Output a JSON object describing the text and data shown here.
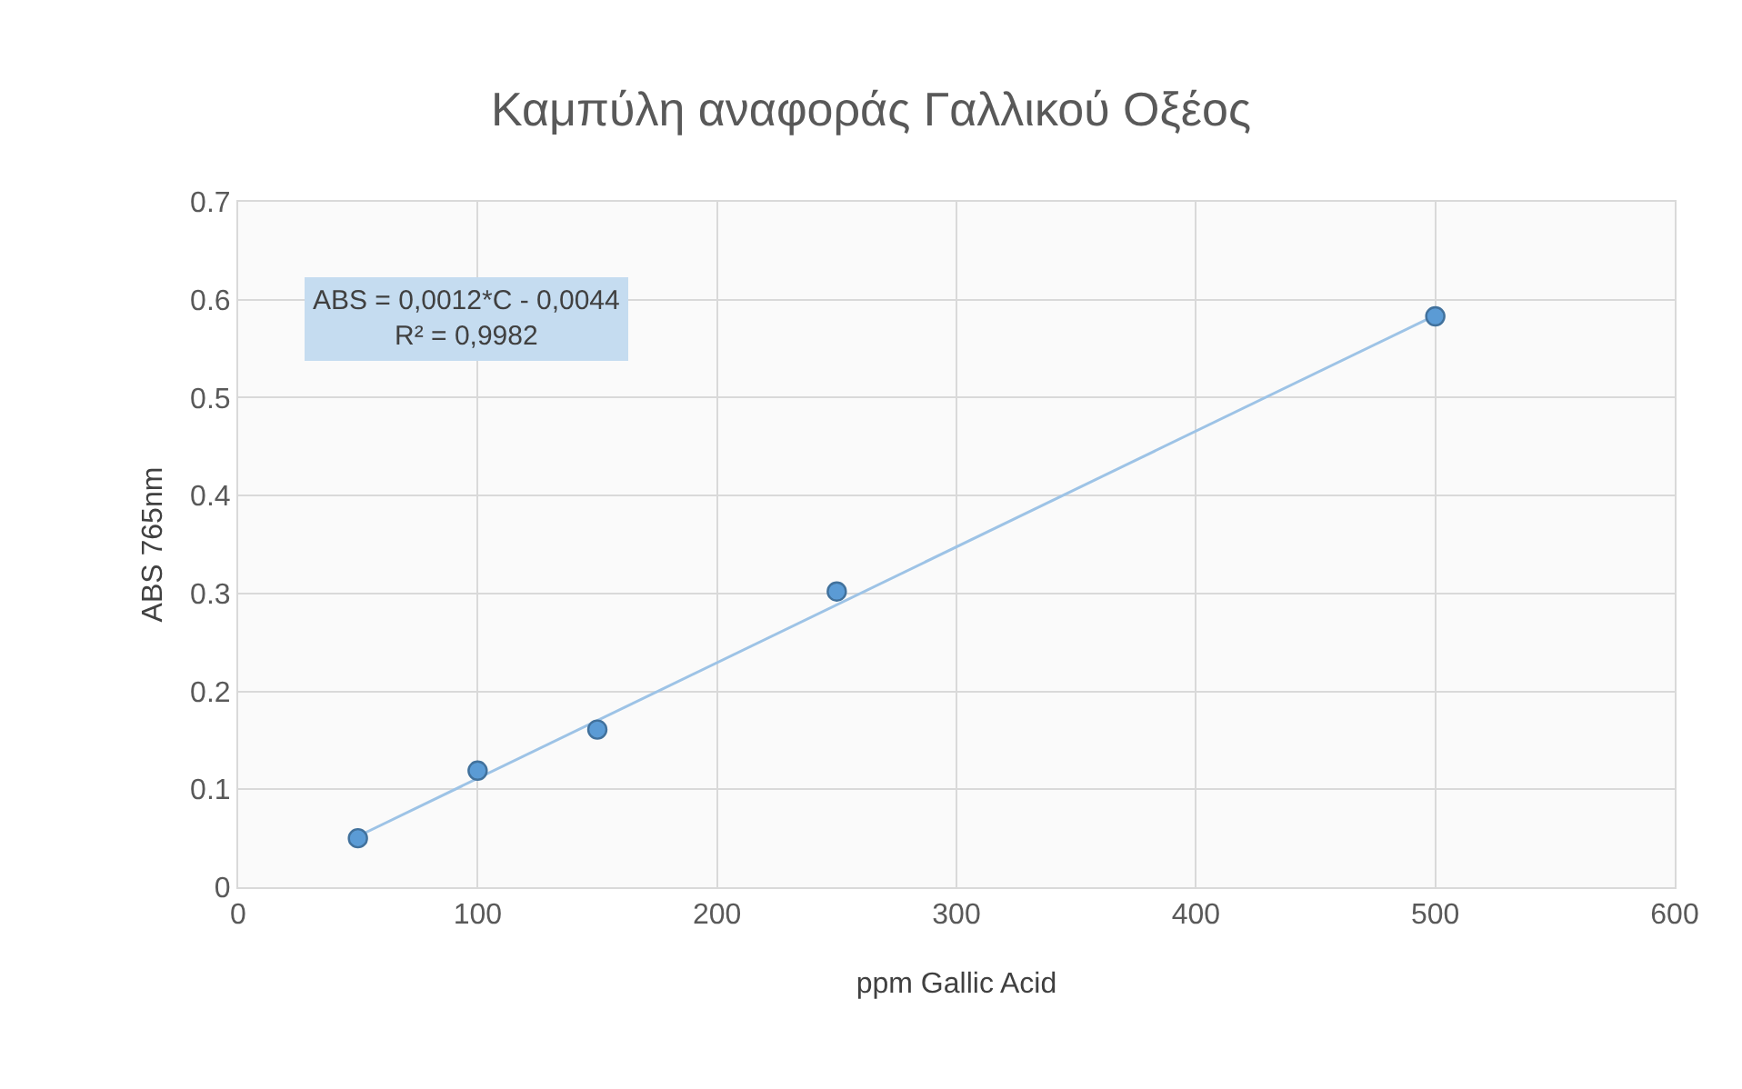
{
  "chart_data": {
    "type": "scatter",
    "title": "Καμπύλη αναφοράς Γαλλικού Οξέος",
    "xlabel": "ppm Gallic Acid",
    "ylabel": "ABS 765nm",
    "x": [
      50,
      100,
      150,
      250,
      500
    ],
    "series": [
      {
        "color": "#5b9bd5",
        "values": [
          0.05,
          0.119,
          0.161,
          0.302,
          0.583
        ]
      },
      {
        "type": "line",
        "marker": "none",
        "color": "#9dc3e6",
        "x": [
          50,
          500
        ],
        "values": [
          0.052,
          0.584
        ]
      }
    ],
    "annotations": [
      "ABS = 0,0012*C - 0,0044\nR² = 0,9982"
    ],
    "xlim": [
      0,
      600
    ],
    "xticks": [
      0,
      100,
      200,
      300,
      400,
      500,
      600
    ],
    "ylim": [
      0,
      0.7
    ],
    "yticks": [
      0,
      0.1,
      0.2,
      0.3,
      0.4,
      0.5,
      0.6,
      0.7
    ],
    "grid": true,
    "marker": "circle"
  }
}
